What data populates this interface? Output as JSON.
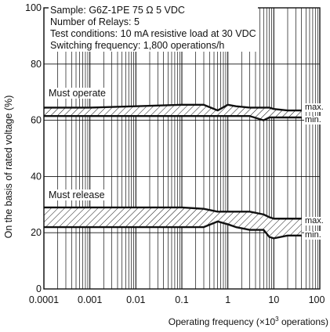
{
  "chart_data": {
    "type": "line",
    "xlabel": "Operating frequency (×10",
    "xlabel_sup": "3",
    "xlabel_tail": " operations)",
    "ylabel": "On the basis of rated voltage (%)",
    "x_scale": "log",
    "xlim": [
      0.0001,
      100
    ],
    "ylim": [
      0,
      100
    ],
    "x_ticks": [
      "0.0001",
      "0.001",
      "0.01",
      "0.1",
      "1",
      "10",
      "100"
    ],
    "y_ticks": [
      "0",
      "20",
      "40",
      "60",
      "80",
      "100"
    ],
    "grid": true,
    "notes": [
      "Sample: G6Z-1PE  75 Ω  5 VDC",
      "Number of Relays: 5",
      "Test conditions: 10 mA resistive load at  30 VDC",
      "Switching frequency: 1,800 operations/h"
    ],
    "annotations": {
      "must_operate": "Must operate",
      "must_release": "Must release",
      "operate_max": "max.",
      "operate_min": "min.",
      "release_max": "max.",
      "release_min": "min."
    },
    "series": [
      {
        "group": "Must operate",
        "bound": "max.",
        "x": [
          0.0001,
          0.001,
          0.01,
          0.1,
          0.3,
          0.6,
          1,
          1.5,
          3,
          6,
          8,
          10,
          20,
          40
        ],
        "y": [
          64.5,
          64.5,
          65,
          65.5,
          65.5,
          63.5,
          65.5,
          65,
          64.5,
          64.5,
          64.5,
          64,
          63.5,
          63.5
        ]
      },
      {
        "group": "Must operate",
        "bound": "min.",
        "x": [
          0.0001,
          0.001,
          0.01,
          0.1,
          0.3,
          0.6,
          1,
          1.5,
          3,
          6,
          8,
          10,
          20,
          40
        ],
        "y": [
          61.5,
          61.5,
          61.5,
          61.5,
          61.5,
          61.5,
          61.5,
          61.5,
          61.5,
          60,
          61,
          61,
          61,
          61
        ]
      },
      {
        "group": "Must release",
        "bound": "max.",
        "x": [
          0.0001,
          0.001,
          0.01,
          0.1,
          0.3,
          0.6,
          1,
          1.5,
          3,
          6,
          8,
          10,
          20,
          40
        ],
        "y": [
          29,
          29,
          29,
          29,
          28.5,
          27.5,
          27.5,
          27.5,
          27.5,
          26.5,
          25.5,
          25,
          25,
          25
        ]
      },
      {
        "group": "Must release",
        "bound": "min.",
        "x": [
          0.0001,
          0.001,
          0.01,
          0.1,
          0.3,
          0.6,
          1,
          1.5,
          3,
          6,
          8,
          10,
          20,
          40
        ],
        "y": [
          22,
          22,
          22,
          22,
          22,
          24,
          23,
          22,
          21,
          21,
          18.5,
          18,
          19,
          19
        ]
      }
    ]
  }
}
